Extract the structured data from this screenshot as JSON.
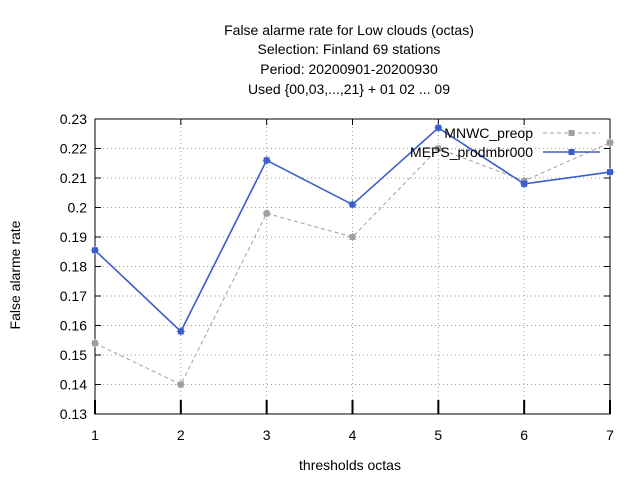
{
  "chart_data": {
    "type": "line",
    "title_lines": [
      "False alarme rate  for Low clouds (octas)",
      "Selection: Finland     69 stations",
      "Period: 20200901-20200930",
      "Used {00,03,...,21} + 01 02 ... 09"
    ],
    "xlabel": "thresholds octas",
    "ylabel": "False alarme rate",
    "x": [
      1,
      2,
      3,
      4,
      5,
      6,
      7
    ],
    "x_tick_labels": [
      "1",
      "2",
      "3",
      "4",
      "5",
      "6",
      "7"
    ],
    "y_tick_labels": [
      "0.13",
      "0.14",
      "0.15",
      "0.16",
      "0.17",
      "0.18",
      "0.19",
      "0.2",
      "0.21",
      "0.22",
      "0.23"
    ],
    "xlim": [
      1,
      7
    ],
    "ylim": [
      0.13,
      0.23
    ],
    "grid": true,
    "legend_position": "top-right",
    "series": [
      {
        "name": "MNWC_preop",
        "color": "#a0a0a0",
        "dashed": true,
        "values": [
          0.154,
          0.14,
          0.198,
          0.19,
          0.22,
          0.209,
          0.222
        ]
      },
      {
        "name": "MEPS_prodmbr000",
        "color": "#3c5ecc",
        "dashed": false,
        "values": [
          0.1855,
          0.158,
          0.216,
          0.201,
          0.227,
          0.208,
          0.212
        ]
      }
    ]
  }
}
